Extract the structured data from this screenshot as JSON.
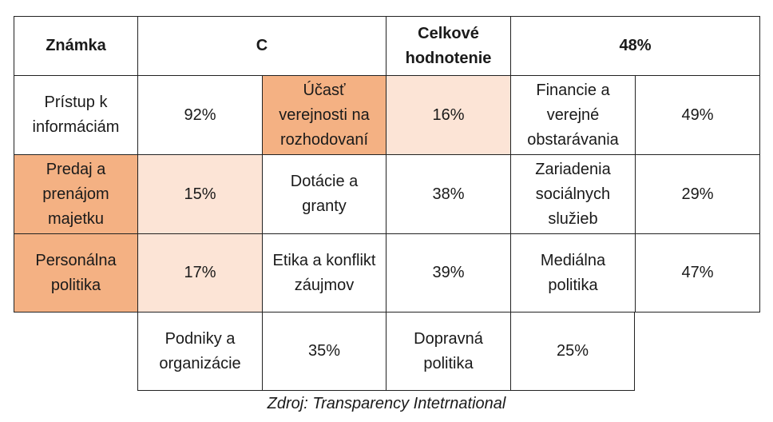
{
  "header": {
    "grade_label": "Známka",
    "grade_value": "C",
    "overall_label": "Celkové hodnotenie",
    "overall_value": "48%"
  },
  "rows": [
    [
      {
        "label": "Prístup k informáciám",
        "value": "92%"
      },
      {
        "label": "Účasť verejnosti na rozhodovaní",
        "value": "16%"
      },
      {
        "label": "Financie a verejné obstarávania",
        "value": "49%"
      }
    ],
    [
      {
        "label": "Predaj a prenájom majetku",
        "value": "15%"
      },
      {
        "label": "Dotácie a granty",
        "value": "38%"
      },
      {
        "label": "Zariadenia sociálnych služieb",
        "value": "29%"
      }
    ],
    [
      {
        "label": "Personálna politika",
        "value": "17%"
      },
      {
        "label": "Etika a konflikt záujmov",
        "value": "39%"
      },
      {
        "label": "Mediálna politika",
        "value": "47%"
      }
    ],
    [
      {
        "label": "Podniky a organizácie",
        "value": "35%"
      },
      {
        "label": "Dopravná politika",
        "value": "25%"
      }
    ]
  ],
  "colors": {
    "dark_highlight": "#f4b183",
    "light_highlight": "#fce4d6",
    "border": "#222222"
  },
  "source": "Zdroj: Transparency Intetrnational"
}
